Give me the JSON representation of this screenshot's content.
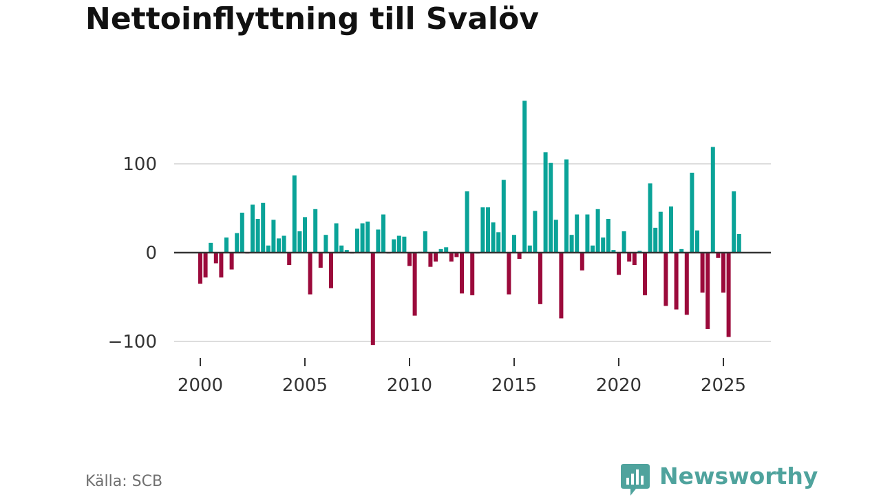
{
  "title": "Nettoinflyttning till Svalöv",
  "source": "Källa: SCB",
  "brand": {
    "name": "Newsworthy",
    "icon": "bar-chart-speech-bubble-icon"
  },
  "colors": {
    "positive": "#0aa398",
    "negative": "#9b0a3b",
    "grid": "#dddddd",
    "zero": "#333333",
    "brand": "#4fa39d"
  },
  "chart_data": {
    "type": "bar",
    "title": "Nettoinflyttning till Svalöv",
    "xlabel": "",
    "ylabel": "",
    "ylim": [
      -110,
      175
    ],
    "xlim": [
      1999.0,
      2026.6
    ],
    "y_ticks": [
      -100,
      0,
      100
    ],
    "y_tick_labels": [
      "−100",
      "0",
      "100"
    ],
    "x_ticks": [
      2000,
      2005,
      2010,
      2015,
      2020,
      2025
    ],
    "x_tick_labels": [
      "2000",
      "2005",
      "2010",
      "2015",
      "2020",
      "2025"
    ],
    "grid": true,
    "frequency": "quarterly",
    "categories": [
      "2000Q1",
      "2000Q2",
      "2000Q3",
      "2000Q4",
      "2001Q1",
      "2001Q2",
      "2001Q3",
      "2001Q4",
      "2002Q1",
      "2002Q2",
      "2002Q3",
      "2002Q4",
      "2003Q1",
      "2003Q2",
      "2003Q3",
      "2003Q4",
      "2004Q1",
      "2004Q2",
      "2004Q3",
      "2004Q4",
      "2005Q1",
      "2005Q2",
      "2005Q3",
      "2005Q4",
      "2006Q1",
      "2006Q2",
      "2006Q3",
      "2006Q4",
      "2007Q1",
      "2007Q2",
      "2007Q3",
      "2007Q4",
      "2008Q1",
      "2008Q2",
      "2008Q3",
      "2008Q4",
      "2009Q1",
      "2009Q2",
      "2009Q3",
      "2009Q4",
      "2010Q1",
      "2010Q2",
      "2010Q3",
      "2010Q4",
      "2011Q1",
      "2011Q2",
      "2011Q3",
      "2011Q4",
      "2012Q1",
      "2012Q2",
      "2012Q3",
      "2012Q4",
      "2013Q1",
      "2013Q2",
      "2013Q3",
      "2013Q4",
      "2014Q1",
      "2014Q2",
      "2014Q3",
      "2014Q4",
      "2015Q1",
      "2015Q2",
      "2015Q3",
      "2015Q4",
      "2016Q1",
      "2016Q2",
      "2016Q3",
      "2016Q4",
      "2017Q1",
      "2017Q2",
      "2017Q3",
      "2017Q4",
      "2018Q1",
      "2018Q2",
      "2018Q3",
      "2018Q4",
      "2019Q1",
      "2019Q2",
      "2019Q3",
      "2019Q4",
      "2020Q1",
      "2020Q2",
      "2020Q3",
      "2020Q4",
      "2021Q1",
      "2021Q2",
      "2021Q3",
      "2021Q4",
      "2022Q1",
      "2022Q2",
      "2022Q3",
      "2022Q4",
      "2023Q1",
      "2023Q2",
      "2023Q3",
      "2023Q4",
      "2024Q1",
      "2024Q2",
      "2024Q3",
      "2024Q4",
      "2025Q1",
      "2025Q2",
      "2025Q3",
      "2025Q4"
    ],
    "values": [
      -35,
      -28,
      11,
      -12,
      -28,
      17,
      -19,
      22,
      45,
      -1,
      54,
      38,
      56,
      8,
      37,
      16,
      19,
      -14,
      87,
      24,
      40,
      -47,
      49,
      -17,
      20,
      -40,
      33,
      8,
      3,
      -1,
      27,
      33,
      35,
      -104,
      26,
      43,
      -1,
      15,
      19,
      18,
      -15,
      -71,
      1,
      24,
      -16,
      -10,
      4,
      6,
      -10,
      -5,
      -46,
      69,
      -48,
      -1,
      51,
      51,
      34,
      23,
      82,
      -47,
      20,
      -7,
      171,
      8,
      47,
      -58,
      113,
      101,
      37,
      -74,
      105,
      20,
      43,
      -20,
      43,
      8,
      49,
      17,
      38,
      3,
      -25,
      24,
      -10,
      -14,
      2,
      -48,
      78,
      28,
      46,
      -60,
      52,
      -64,
      4,
      -70,
      90,
      25,
      -45,
      -86,
      119,
      -6,
      -45,
      -95,
      69,
      21
    ]
  }
}
